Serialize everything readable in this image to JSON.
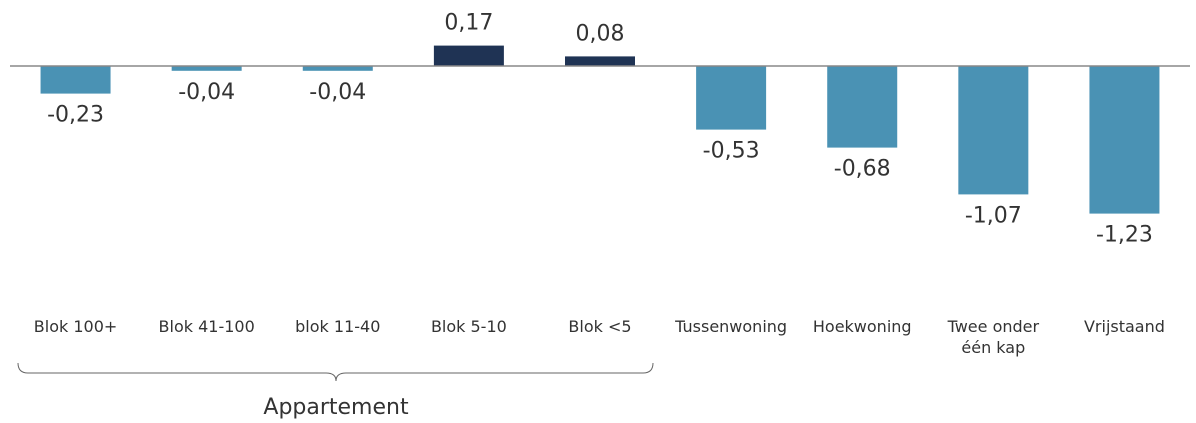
{
  "chart_data": {
    "type": "bar",
    "categories": [
      "Blok 100+",
      "Blok 41-100",
      "blok 11-40",
      "Blok 5-10",
      "Blok <5",
      "Tussenwoning",
      "Hoekwoning",
      "Twee onder één kap",
      "Vrijstaand"
    ],
    "values": [
      -0.23,
      -0.04,
      -0.04,
      0.17,
      0.08,
      -0.53,
      -0.68,
      -1.07,
      -1.23
    ],
    "value_labels": [
      "-0,23",
      "-0,04",
      "-0,04",
      "0,17",
      "0,08",
      "-0,53",
      "-0,68",
      "-1,07",
      "-1,23"
    ],
    "colors": [
      "#4a92b4",
      "#4a92b4",
      "#4a92b4",
      "#1f3354",
      "#1f3354",
      "#4a92b4",
      "#4a92b4",
      "#4a92b4",
      "#4a92b4"
    ],
    "group_label": "Appartement"
  }
}
